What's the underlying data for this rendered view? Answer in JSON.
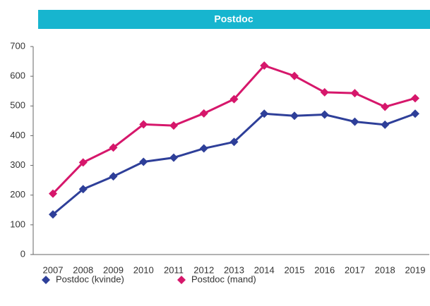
{
  "chart_data": {
    "type": "line",
    "title": "Postdoc",
    "categories": [
      "2007",
      "2008",
      "2009",
      "2010",
      "2011",
      "2012",
      "2013",
      "2014",
      "2015",
      "2016",
      "2017",
      "2018",
      "2019"
    ],
    "series": [
      {
        "name": "Postdoc (kvinde)",
        "color": "#2e3f99",
        "values": [
          135,
          220,
          263,
          312,
          326,
          357,
          379,
          474,
          467,
          471,
          447,
          437,
          474
        ]
      },
      {
        "name": "Postdoc (mand)",
        "color": "#d6176b",
        "values": [
          205,
          310,
          360,
          438,
          434,
          475,
          523,
          636,
          601,
          546,
          543,
          497,
          526
        ]
      }
    ],
    "ylim": [
      0,
      700
    ],
    "yticks": [
      0,
      100,
      200,
      300,
      400,
      500,
      600,
      700
    ],
    "grid": false,
    "legend": "bottom"
  }
}
